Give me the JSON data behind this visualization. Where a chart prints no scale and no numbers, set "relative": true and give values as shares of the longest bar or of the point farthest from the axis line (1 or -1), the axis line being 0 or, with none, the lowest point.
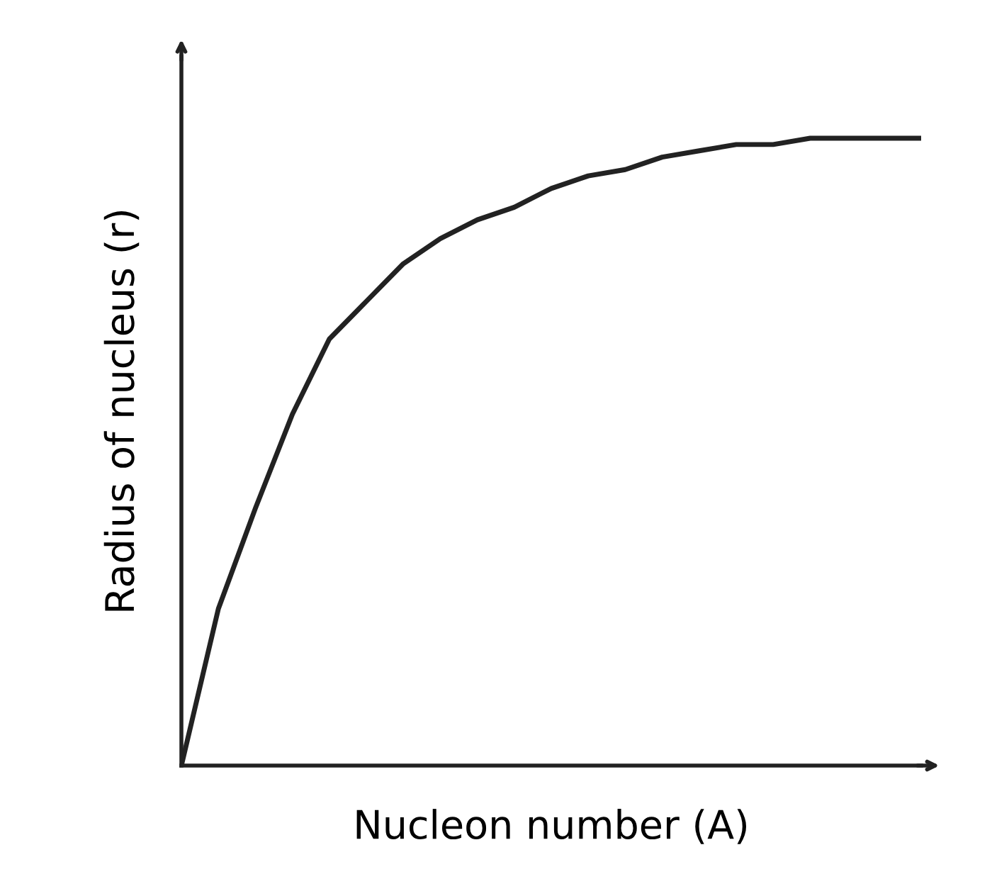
{
  "chart_data": {
    "type": "line",
    "relative": true,
    "xlabel": "Nucleon number (A)",
    "ylabel": "Radius of nucleus (r)",
    "tick_labels": false,
    "grid": false,
    "legend": false,
    "marker": "none",
    "line_style": "solid",
    "categories": [
      null,
      null,
      null,
      null,
      null,
      null,
      null,
      null,
      null,
      null,
      null,
      null,
      null,
      null,
      null,
      null,
      null,
      null,
      null,
      null,
      null
    ],
    "series": [
      {
        "color": "#222222",
        "values": [
          0,
          0.25,
          0.41,
          0.56,
          0.68,
          0.74,
          0.8,
          0.84,
          0.87,
          0.89,
          0.92,
          0.94,
          0.95,
          0.97,
          0.98,
          0.99,
          0.99,
          1.0,
          1.0,
          1.0,
          1.0
        ]
      }
    ]
  }
}
